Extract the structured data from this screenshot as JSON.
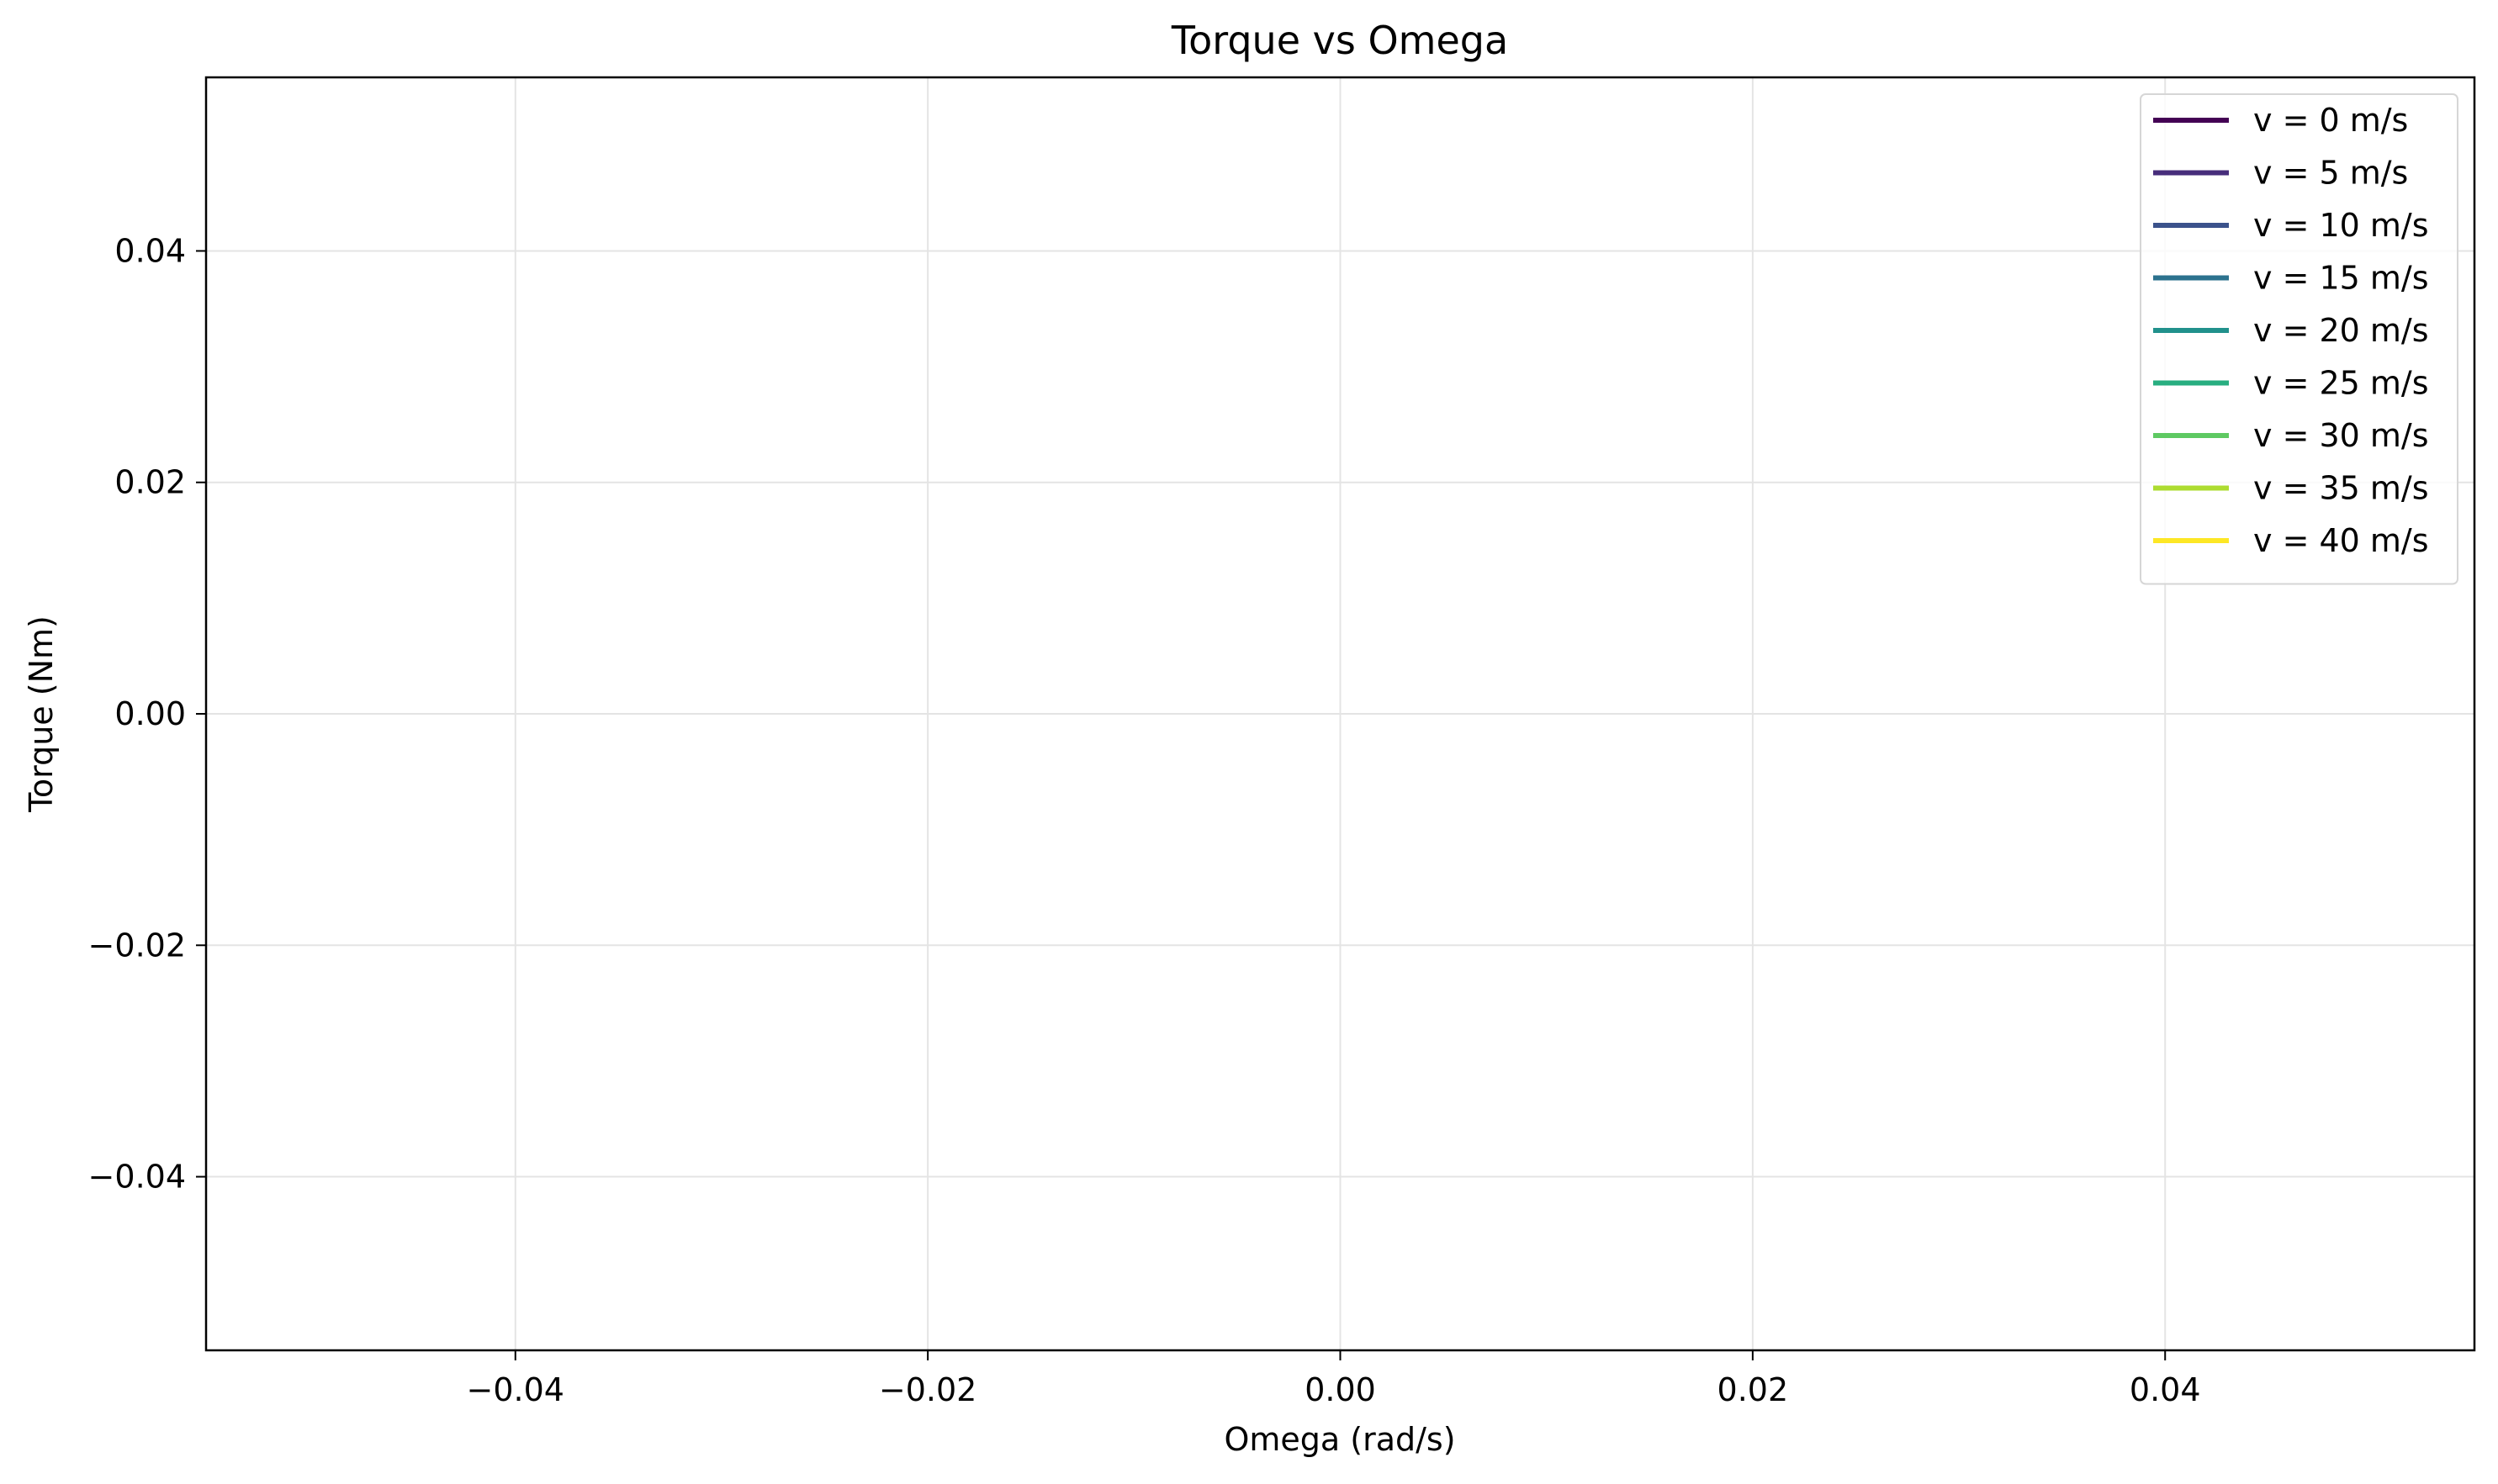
{
  "chart_data": {
    "type": "line",
    "title": "Torque vs Omega",
    "xlabel": "Omega (rad/s)",
    "ylabel": "Torque (Nm)",
    "xlim": [
      -0.055,
      0.055
    ],
    "ylim": [
      -0.055,
      0.055
    ],
    "xticks": [
      -0.04,
      -0.02,
      0.0,
      0.02,
      0.04
    ],
    "yticks": [
      -0.04,
      -0.02,
      0.0,
      0.02,
      0.04
    ],
    "xtick_labels": [
      "−0.04",
      "−0.02",
      "0.00",
      "0.02",
      "0.04"
    ],
    "ytick_labels": [
      "−0.04",
      "−0.02",
      "0.00",
      "0.02",
      "0.04"
    ],
    "grid": true,
    "legend_position": "top-right",
    "series": [
      {
        "name": "v = 0 m/s",
        "color": "#440154",
        "x": [],
        "y": []
      },
      {
        "name": "v = 5 m/s",
        "color": "#472d7b",
        "x": [],
        "y": []
      },
      {
        "name": "v = 10 m/s",
        "color": "#3b528b",
        "x": [],
        "y": []
      },
      {
        "name": "v = 15 m/s",
        "color": "#2c728e",
        "x": [],
        "y": []
      },
      {
        "name": "v = 20 m/s",
        "color": "#21918c",
        "x": [],
        "y": []
      },
      {
        "name": "v = 25 m/s",
        "color": "#28ae80",
        "x": [],
        "y": []
      },
      {
        "name": "v = 30 m/s",
        "color": "#5ec962",
        "x": [],
        "y": []
      },
      {
        "name": "v = 35 m/s",
        "color": "#addc30",
        "x": [],
        "y": []
      },
      {
        "name": "v = 40 m/s",
        "color": "#fde725",
        "x": [],
        "y": []
      }
    ]
  }
}
